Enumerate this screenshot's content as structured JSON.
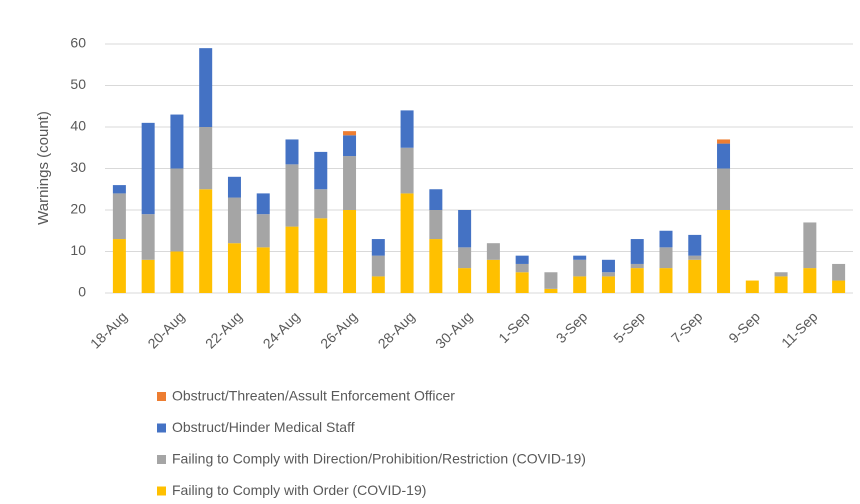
{
  "chart_data": {
    "type": "stacked_bar",
    "y_label": "Warnings (count)",
    "categories": [
      "18-Aug",
      null,
      "20-Aug",
      null,
      "22-Aug",
      null,
      "24-Aug",
      null,
      "26-Aug",
      null,
      "28-Aug",
      null,
      "30-Aug",
      null,
      "1-Sep",
      null,
      "3-Sep",
      null,
      "5-Sep",
      null,
      "7-Sep",
      null,
      "9-Sep",
      null,
      "11-Sep",
      null
    ],
    "series": [
      {
        "name": "Failing to Comply with Order (COVID-19)",
        "color": "#ffc000",
        "values": [
          13,
          8,
          10,
          25,
          12,
          11,
          16,
          18,
          20,
          4,
          24,
          13,
          6,
          8,
          5,
          1,
          4,
          4,
          6,
          6,
          8,
          20,
          3,
          4,
          6,
          3
        ]
      },
      {
        "name": "Failing to Comply with Direction/Prohibition/Restriction (COVID-19)",
        "color": "#a5a5a5",
        "values": [
          11,
          11,
          20,
          15,
          11,
          8,
          15,
          7,
          13,
          5,
          11,
          7,
          5,
          4,
          2,
          4,
          4,
          1,
          1,
          5,
          1,
          10,
          0,
          1,
          11,
          4
        ]
      },
      {
        "name": "Obstruct/Hinder Medical Staff",
        "color": "#4472c4",
        "values": [
          2,
          22,
          13,
          19,
          5,
          5,
          6,
          9,
          5,
          4,
          9,
          5,
          9,
          0,
          2,
          0,
          1,
          3,
          6,
          4,
          5,
          6,
          0,
          0,
          0,
          0
        ]
      },
      {
        "name": "Obstruct/Threaten/Assult Enforcement Officer",
        "color": "#ed7d31",
        "values": [
          0,
          0,
          0,
          0,
          0,
          0,
          0,
          0,
          1,
          0,
          0,
          0,
          0,
          0,
          0,
          0,
          0,
          0,
          0,
          0,
          0,
          1,
          0,
          0,
          0,
          0
        ]
      }
    ],
    "ylim": [
      0,
      60
    ],
    "yticks": [
      0,
      10,
      20,
      30,
      40,
      50,
      60
    ],
    "grid": true
  }
}
